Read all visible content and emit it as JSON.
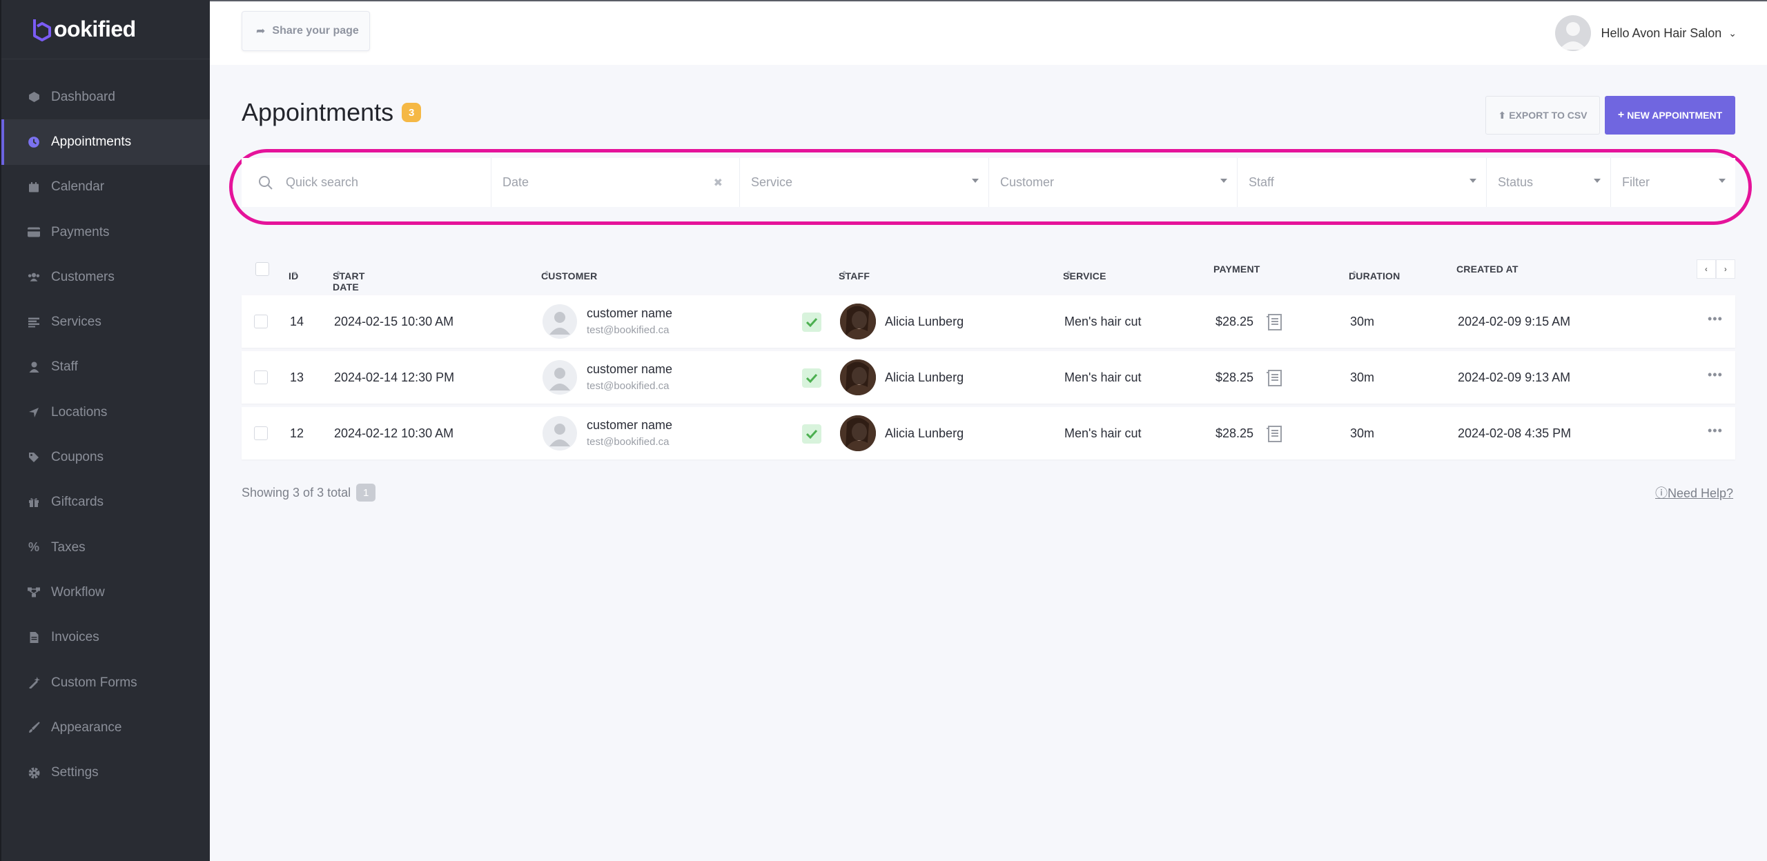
{
  "brand": {
    "logo_text": "ookified"
  },
  "sidebar": {
    "items": [
      {
        "label": "Dashboard",
        "icon": "dashboard-icon",
        "active": false
      },
      {
        "label": "Appointments",
        "icon": "clock-icon",
        "active": true
      },
      {
        "label": "Calendar",
        "icon": "calendar-icon",
        "active": false
      },
      {
        "label": "Payments",
        "icon": "credit-card-icon",
        "active": false
      },
      {
        "label": "Customers",
        "icon": "users-icon",
        "active": false
      },
      {
        "label": "Services",
        "icon": "list-icon",
        "active": false
      },
      {
        "label": "Staff",
        "icon": "user-icon",
        "active": false
      },
      {
        "label": "Locations",
        "icon": "location-arrow-icon",
        "active": false
      },
      {
        "label": "Coupons",
        "icon": "tag-icon",
        "active": false
      },
      {
        "label": "Giftcards",
        "icon": "gift-icon",
        "active": false
      },
      {
        "label": "Taxes",
        "icon": "percent-icon",
        "active": false
      },
      {
        "label": "Workflow",
        "icon": "workflow-icon",
        "active": false
      },
      {
        "label": "Invoices",
        "icon": "invoice-icon",
        "active": false
      },
      {
        "label": "Custom Forms",
        "icon": "magic-wand-icon",
        "active": false
      },
      {
        "label": "Appearance",
        "icon": "paint-brush-icon",
        "active": false
      },
      {
        "label": "Settings",
        "icon": "gear-icon",
        "active": false
      }
    ]
  },
  "header": {
    "share_label": "Share your page",
    "user_greeting": "Hello Avon Hair Salon"
  },
  "page": {
    "title": "Appointments",
    "count": "3",
    "export_label": "EXPORT TO CSV",
    "new_label": "NEW APPOINTMENT"
  },
  "filters": {
    "search_placeholder": "Quick search",
    "date": "Date",
    "service": "Service",
    "customer": "Customer",
    "staff": "Staff",
    "status": "Status",
    "filter": "Filter"
  },
  "table": {
    "columns": {
      "id": "ID",
      "start_date": "START DATE",
      "customer": "CUSTOMER",
      "staff": "STAFF",
      "service": "SERVICE",
      "payment": "PAYMENT",
      "duration": "DURATION",
      "created_at": "CREATED AT"
    },
    "rows": [
      {
        "id": "14",
        "start": "2024-02-15 10:30 AM",
        "customer_name": "customer name",
        "customer_email": "test@bookified.ca",
        "staff": "Alicia Lunberg",
        "service": "Men's hair cut",
        "payment": "$28.25",
        "duration": "30m",
        "created": "2024-02-09 9:15 AM"
      },
      {
        "id": "13",
        "start": "2024-02-14 12:30 PM",
        "customer_name": "customer name",
        "customer_email": "test@bookified.ca",
        "staff": "Alicia Lunberg",
        "service": "Men's hair cut",
        "payment": "$28.25",
        "duration": "30m",
        "created": "2024-02-09 9:13 AM"
      },
      {
        "id": "12",
        "start": "2024-02-12 10:30 AM",
        "customer_name": "customer name",
        "customer_email": "test@bookified.ca",
        "staff": "Alicia Lunberg",
        "service": "Men's hair cut",
        "payment": "$28.25",
        "duration": "30m",
        "created": "2024-02-08 4:35 PM"
      }
    ]
  },
  "footer": {
    "showing": "Showing 3 of 3 total",
    "page": "1",
    "help": "Need Help?"
  },
  "colors": {
    "accent": "#7066e0",
    "sidebar_bg": "#292c33",
    "badge": "#f5b845",
    "highlight_ring": "#e5139a",
    "success": "#4caf50"
  }
}
